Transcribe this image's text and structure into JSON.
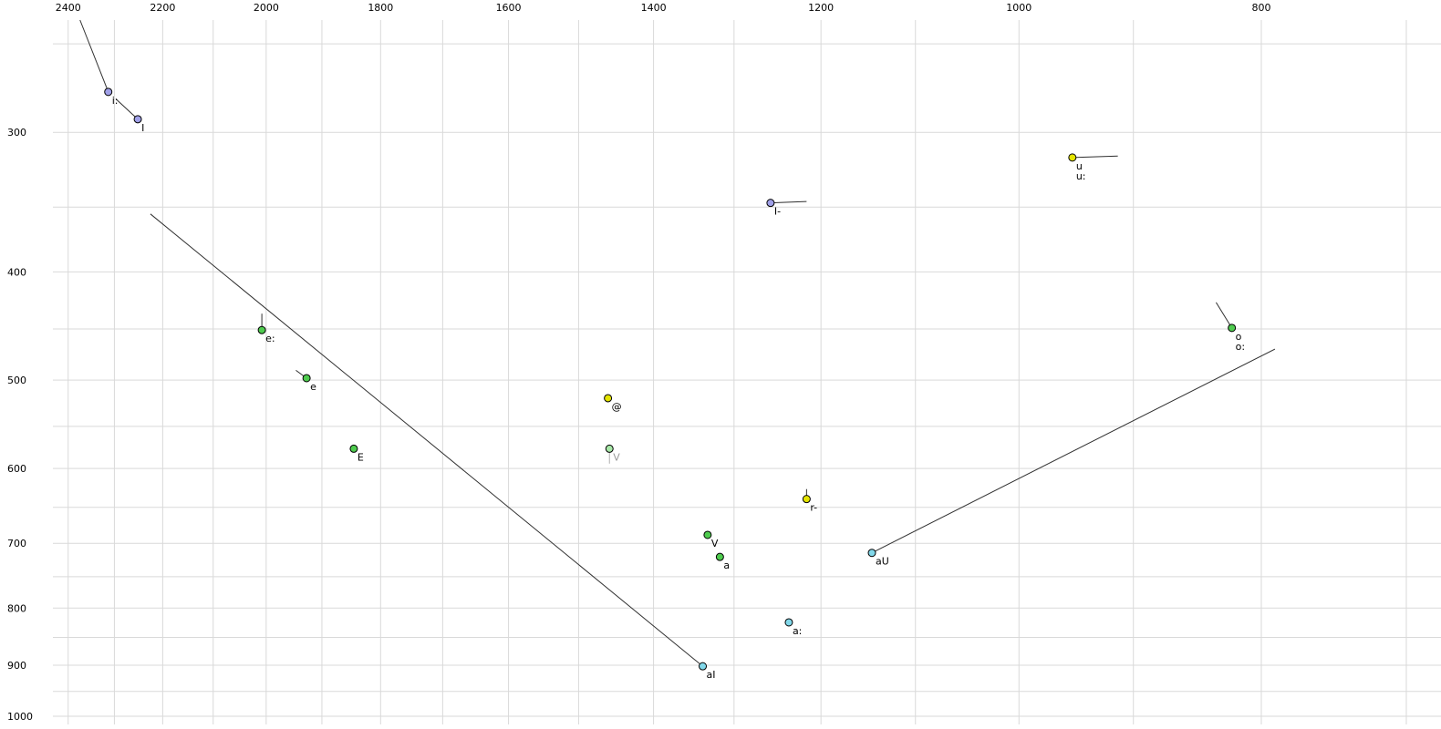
{
  "chart_data": {
    "type": "scatter",
    "title": "",
    "x_axis": {
      "ticks": [
        2400,
        2200,
        2000,
        1800,
        1600,
        1400,
        1200,
        1000,
        800
      ],
      "min": 678,
      "max": 2434,
      "scale": "log",
      "reversed": true,
      "grid_from": 2400,
      "grid_to": 700,
      "grid_minor_step": 100
    },
    "y_axis": {
      "ticks": [
        300,
        400,
        500,
        600,
        700,
        800,
        900,
        1000
      ],
      "min": 238,
      "max": 1017,
      "scale": "log",
      "reversed": true,
      "grid_from": 250,
      "grid_to": 1000,
      "grid_minor_step": 50
    },
    "points": [
      {
        "label": "i:",
        "f2": 2313,
        "f1": 276,
        "fill": "#a0a0e8",
        "tail": {
          "f2": 2374,
          "f1": 238
        }
      },
      {
        "label": "I",
        "f2": 2251,
        "f1": 292,
        "fill": "#a0a0e8",
        "tail": {
          "f2": 2297,
          "f1": 280
        }
      },
      {
        "label": "I-",
        "f2": 1257,
        "f1": 347,
        "fill": "#a0a0e8",
        "tail": {
          "f2": 1216,
          "f1": 346
        }
      },
      {
        "label": "u",
        "label2": "u:",
        "f2": 952,
        "f1": 316,
        "fill": "#e4e400",
        "tail": {
          "f2": 913,
          "f1": 315
        }
      },
      {
        "label": "o",
        "label2": "o:",
        "f2": 822,
        "f1": 449,
        "fill": "#4ecb4e",
        "tail": {
          "f2": 834,
          "f1": 426
        }
      },
      {
        "label": "e:",
        "f2": 2008,
        "f1": 451,
        "fill": "#4ecb4e",
        "tail": {
          "f2": 2008,
          "f1": 436
        }
      },
      {
        "label": "e",
        "f2": 1927,
        "f1": 498,
        "fill": "#4ecb4e",
        "tail": {
          "f2": 1946,
          "f1": 490
        }
      },
      {
        "label": "E",
        "f2": 1845,
        "f1": 576,
        "fill": "#4ecb4e"
      },
      {
        "label": "@",
        "f2": 1460,
        "f1": 519,
        "fill": "#e4e400"
      },
      {
        "label": "V",
        "f2": 1458,
        "f1": 576,
        "fill": "#a8e8a8",
        "label_color": "#9a9a9a",
        "tail": {
          "f2": 1458,
          "f1": 594
        },
        "tail_color": "#b0b0b0"
      },
      {
        "label": "r-",
        "f2": 1216,
        "f1": 639,
        "fill": "#e4e400",
        "tail": {
          "f2": 1216,
          "f1": 626
        }
      },
      {
        "label": "V",
        "f2": 1332,
        "f1": 688,
        "fill": "#4ecb4e"
      },
      {
        "label": "a",
        "f2": 1317,
        "f1": 720,
        "fill": "#4ecb4e"
      },
      {
        "label": "aU",
        "f2": 1145,
        "f1": 714,
        "fill": "#82d8ea",
        "tail": {
          "f2": 790,
          "f1": 469
        }
      },
      {
        "label": "a:",
        "f2": 1236,
        "f1": 824,
        "fill": "#82d8ea"
      },
      {
        "label": "aI",
        "f2": 1338,
        "f1": 902,
        "fill": "#82d8ea",
        "tail": {
          "f2": 2225,
          "f1": 355
        }
      }
    ],
    "style": {
      "background": "#ffffff",
      "grid_color": "#d9d9d9",
      "tick_label_color": "#000000",
      "point_stroke": "#000000",
      "trajectory_color": "#2f2f2f",
      "point_radius": 4
    }
  }
}
